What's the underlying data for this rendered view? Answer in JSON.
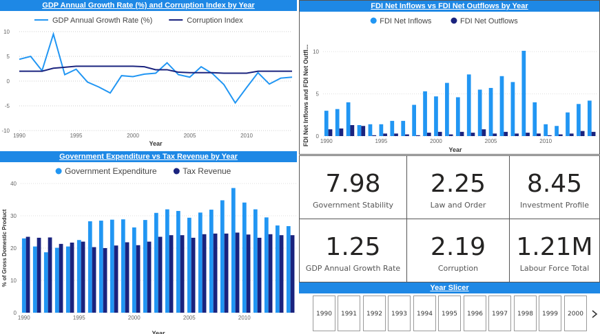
{
  "gdp_panel": {
    "title": "GDP Annual Growth Rate (%) and Corruption Index by Year",
    "xlabel": "Year",
    "legend": [
      "GDP Annual Growth Rate (%)",
      "Corruption Index"
    ]
  },
  "fdi_panel": {
    "title": "FDI Net Inflows vs FDI Net Outflows by Year",
    "xlabel": "Year",
    "ylabel": "FDI Net Inflows and FDI Net Outfl...",
    "legend": [
      "FDI Net Inflows",
      "FDI Net Outflows"
    ]
  },
  "gov_panel": {
    "title": "Government Expenditure vs Tax Revenue by Year",
    "xlabel": "Year",
    "ylabel": "% of Gross Domestic Product",
    "legend": [
      "Government Expenditure",
      "Tax Revenue"
    ]
  },
  "kpis": [
    {
      "value": "7.98",
      "label": "Government Stability"
    },
    {
      "value": "2.25",
      "label": "Law and Order"
    },
    {
      "value": "8.45",
      "label": "Investment Profile"
    },
    {
      "value": "1.25",
      "label": "GDP Annual Growth Rate"
    },
    {
      "value": "2.19",
      "label": "Corruption"
    },
    {
      "value": "1.21M",
      "label": "Labour Force Total"
    }
  ],
  "slicer": {
    "title": "Year Slicer",
    "years": [
      "1990",
      "1991",
      "1992",
      "1993",
      "1994",
      "1995",
      "1996",
      "1997",
      "1998",
      "1999",
      "2000"
    ],
    "next_icon": "chevron-right-icon"
  },
  "colors": {
    "light": "#2196f3",
    "dark": "#1a237e",
    "title_bar": "#1e88e5"
  },
  "chart_data": [
    {
      "type": "line",
      "title": "GDP Annual Growth Rate (%) and Corruption Index by Year",
      "xlabel": "Year",
      "ylabel": "",
      "ylim": [
        -10,
        10
      ],
      "yticks": [
        10,
        5,
        0,
        -5,
        -10
      ],
      "xticks": [
        1990,
        1995,
        2000,
        2005,
        2010
      ],
      "x": [
        1990,
        1991,
        1992,
        1993,
        1994,
        1995,
        1996,
        1997,
        1998,
        1999,
        2000,
        2001,
        2002,
        2003,
        2004,
        2005,
        2006,
        2007,
        2008,
        2009,
        2010,
        2011,
        2012,
        2013,
        2014
      ],
      "series": [
        {
          "name": "GDP Annual Growth Rate (%)",
          "values": [
            4.4,
            5.0,
            2.1,
            9.5,
            1.3,
            2.4,
            -0.2,
            -1.2,
            -2.4,
            1.1,
            0.9,
            1.4,
            1.6,
            3.7,
            1.3,
            0.8,
            2.9,
            1.5,
            -0.7,
            -4.4,
            -1.3,
            1.7,
            -0.6,
            0.6,
            0.8
          ]
        },
        {
          "name": "Corruption Index",
          "values": [
            2.0,
            2.0,
            2.0,
            2.6,
            2.8,
            3.0,
            3.0,
            3.0,
            3.0,
            3.0,
            3.0,
            2.9,
            2.3,
            2.3,
            1.8,
            1.7,
            1.7,
            1.7,
            1.6,
            1.6,
            1.6,
            2.0,
            2.0,
            2.0,
            2.0
          ]
        }
      ]
    },
    {
      "type": "bar",
      "title": "FDI Net Inflows vs FDI Net Outflows by Year",
      "xlabel": "Year",
      "ylabel": "FDI Net Inflows and FDI Net Outfl...",
      "ylim": [
        0,
        10.5
      ],
      "yticks": [
        0,
        5,
        10
      ],
      "xticks": [
        1990,
        1995,
        2000,
        2005,
        2010
      ],
      "categories": [
        1990,
        1991,
        1992,
        1993,
        1994,
        1995,
        1996,
        1997,
        1998,
        1999,
        2000,
        2001,
        2002,
        2003,
        2004,
        2005,
        2006,
        2007,
        2008,
        2009,
        2010,
        2011,
        2012,
        2013,
        2014
      ],
      "series": [
        {
          "name": "FDI Net Inflows",
          "values": [
            3.0,
            3.2,
            4.0,
            1.3,
            1.4,
            1.4,
            1.8,
            1.8,
            3.7,
            5.3,
            4.7,
            6.3,
            4.6,
            7.3,
            5.5,
            5.7,
            7.1,
            6.4,
            10.1,
            4.0,
            1.4,
            1.2,
            2.8,
            3.8,
            4.2
          ]
        },
        {
          "name": "FDI Net Outflows",
          "values": [
            0.8,
            0.9,
            1.3,
            1.2,
            0.1,
            0.3,
            0.3,
            0.2,
            0.1,
            0.4,
            0.5,
            0.2,
            0.5,
            0.4,
            0.8,
            0.3,
            0.5,
            0.3,
            0.4,
            0.3,
            0.1,
            0.2,
            0.3,
            0.6,
            0.5
          ]
        }
      ]
    },
    {
      "type": "bar",
      "title": "Government Expenditure vs Tax Revenue by Year",
      "xlabel": "Year",
      "ylabel": "% of Gross Domestic Product",
      "ylim": [
        0,
        40
      ],
      "yticks": [
        0,
        10,
        20,
        30,
        40
      ],
      "xticks": [
        1990,
        1995,
        2000,
        2005,
        2010
      ],
      "categories": [
        1990,
        1991,
        1992,
        1993,
        1994,
        1995,
        1996,
        1997,
        1998,
        1999,
        2000,
        2001,
        2002,
        2003,
        2004,
        2005,
        2006,
        2007,
        2008,
        2009,
        2010,
        2011,
        2012,
        2013,
        2014
      ],
      "series": [
        {
          "name": "Government Expenditure",
          "values": [
            23.0,
            20.5,
            18.7,
            20.1,
            20.5,
            22.5,
            28.3,
            28.5,
            28.8,
            28.9,
            26.4,
            28.7,
            30.9,
            32.0,
            31.5,
            29.4,
            31.0,
            31.9,
            34.8,
            38.6,
            34.1,
            32.0,
            29.5,
            27.0,
            26.8
          ]
        },
        {
          "name": "Tax Revenue",
          "values": [
            23.5,
            23.2,
            23.3,
            21.3,
            21.7,
            22.0,
            20.3,
            20.0,
            20.8,
            21.8,
            20.9,
            22.0,
            23.5,
            24.0,
            24.0,
            23.2,
            24.3,
            24.5,
            24.5,
            24.8,
            24.2,
            23.2,
            24.3,
            24.0,
            24.0
          ]
        }
      ]
    }
  ]
}
